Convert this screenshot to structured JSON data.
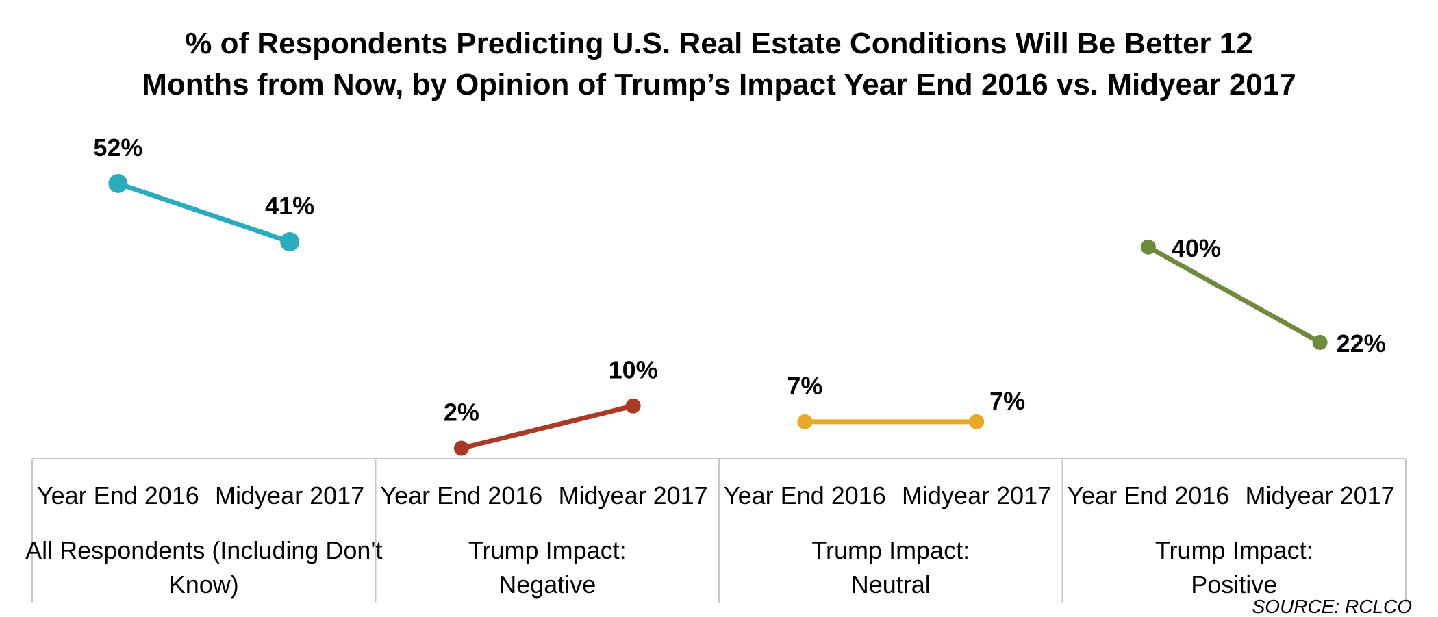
{
  "chart_data": {
    "type": "line",
    "title_lines": [
      "% of Respondents Predicting U.S. Real Estate Conditions Will Be Better 12",
      "Months from Now, by Opinion of Trump’s Impact Year End 2016 vs. Midyear 2017"
    ],
    "categories": [
      "Year End 2016",
      "Midyear 2017"
    ],
    "groups": [
      {
        "label_lines": [
          "All Respondents (Including Don't",
          "Know)"
        ],
        "values": [
          52,
          41
        ],
        "value_labels": [
          "52%",
          "41%"
        ],
        "color": "#2AABBE"
      },
      {
        "label_lines": [
          "Trump Impact:",
          "Negative"
        ],
        "values": [
          2,
          10
        ],
        "value_labels": [
          "2%",
          "10%"
        ],
        "color": "#A83A26"
      },
      {
        "label_lines": [
          "Trump Impact:",
          "Neutral"
        ],
        "values": [
          7,
          7
        ],
        "value_labels": [
          "7%",
          "7%"
        ],
        "color": "#E9A826"
      },
      {
        "label_lines": [
          "Trump Impact:",
          "Positive"
        ],
        "values": [
          40,
          22
        ],
        "value_labels": [
          "40%",
          "22%"
        ],
        "color": "#6E8B3D"
      }
    ],
    "ylim": [
      0,
      62
    ],
    "grid": false,
    "legend": "none",
    "source": "SOURCE:  RCLCO"
  }
}
